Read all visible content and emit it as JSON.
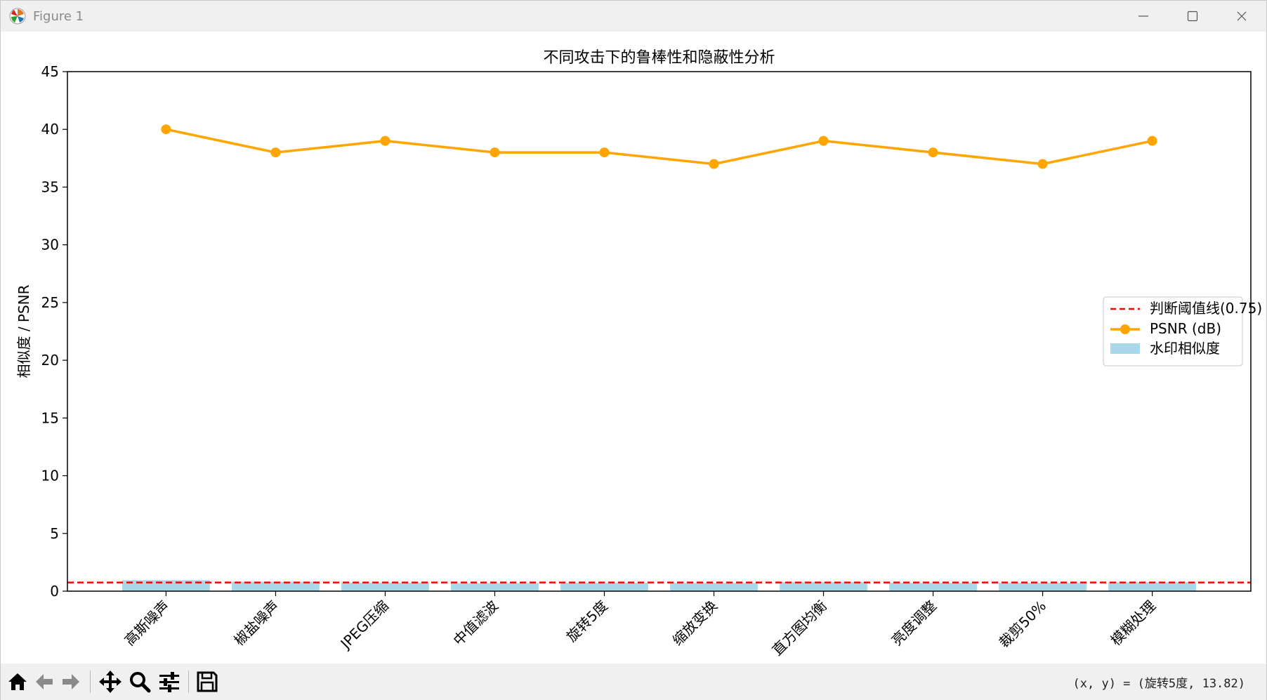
{
  "window": {
    "title": "Figure 1",
    "icons": {
      "app": "matplotlib-logo-icon",
      "minimize": "minimize-icon",
      "maximize": "maximize-icon",
      "close": "close-icon"
    }
  },
  "toolbar": {
    "buttons": [
      {
        "name": "home",
        "icon": "home-icon"
      },
      {
        "name": "back",
        "icon": "back-arrow-icon"
      },
      {
        "name": "forward",
        "icon": "forward-arrow-icon"
      },
      {
        "name": "pan",
        "icon": "move-icon"
      },
      {
        "name": "zoom",
        "icon": "magnifier-icon"
      },
      {
        "name": "configure",
        "icon": "sliders-icon"
      },
      {
        "name": "save",
        "icon": "floppy-disk-icon"
      }
    ],
    "coords_text": "(x, y) = (旋转5度, 13.82)"
  },
  "chart_data": {
    "type": "bar",
    "title": "不同攻击下的鲁棒性和隐蔽性分析",
    "ylabel": "相似度 / PSNR",
    "xlabel": "",
    "categories": [
      "高斯噪声",
      "椒盐噪声",
      "JPEG压缩",
      "中值滤波",
      "旋转5度",
      "缩放变换",
      "直方图均衡",
      "亮度调整",
      "裁剪50%",
      "模糊处理"
    ],
    "bar_series": {
      "name": "水印相似度",
      "values": [
        0.95,
        0.82,
        0.74,
        0.7,
        0.72,
        0.71,
        0.8,
        0.72,
        0.72,
        0.78
      ],
      "color": "#a8d8ea"
    },
    "line_series": {
      "name": "PSNR (dB)",
      "values": [
        40,
        38,
        39,
        38,
        38,
        37,
        39,
        38,
        37,
        39
      ],
      "color": "#ffa500"
    },
    "threshold": {
      "name": "判断阈值线(0.75)",
      "value": 0.75,
      "color": "#ff0000"
    },
    "ylim": [
      0,
      45
    ],
    "yticks": [
      0,
      5,
      10,
      15,
      20,
      25,
      30,
      35,
      40,
      45
    ],
    "grid": false,
    "legend_position": "center-right"
  }
}
